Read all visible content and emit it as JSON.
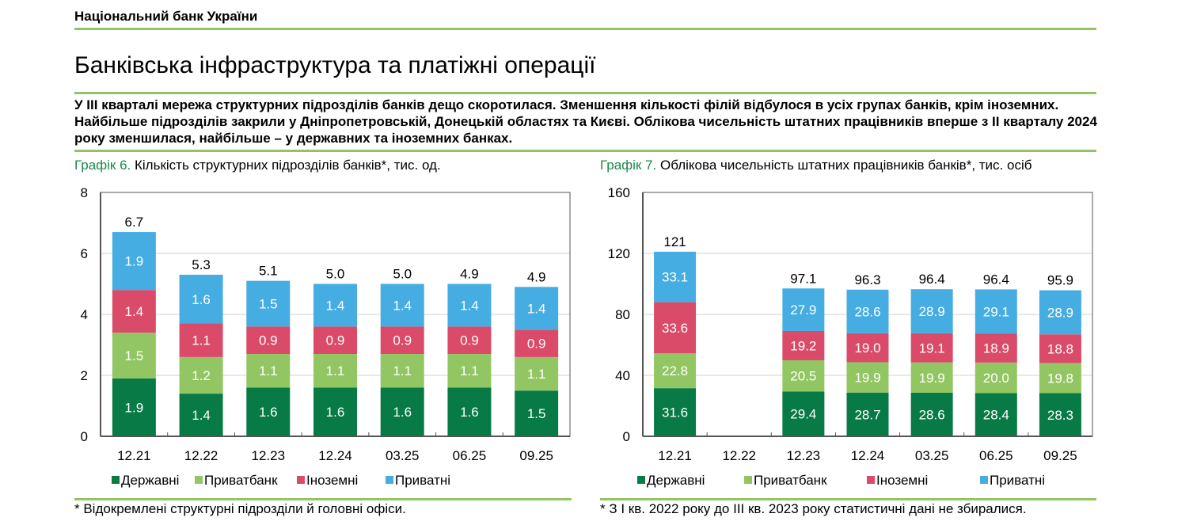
{
  "header": {
    "organization": "Національний банк України",
    "title": "Банківська інфраструктура та платіжні операції",
    "lead": "У ІІІ кварталі мережа структурних підрозділів банків дещо скоротилася. Зменшення кількості філій відбулося в усіх групах банків, крім іноземних. Найбільше підрозділів закрили у Дніпропетровській, Донецькій областях та Києві. Облікова чисельність штатних працівників вперше з ІІ кварталу 2024 року зменшилася, найбільше – у державних та іноземних банках."
  },
  "colors": {
    "accent_rule": "#92c463",
    "caption_number": "#1b8a4a",
    "state": "#087a45",
    "privatbank": "#92c663",
    "foreign": "#d94b68",
    "private": "#45ade2"
  },
  "chart_data": [
    {
      "type": "bar",
      "stacked": true,
      "caption_number": "Графік 6.",
      "title": "Кількість структурних підрозділів банків*, тис. од.",
      "categories": [
        "12.21",
        "12.22",
        "12.23",
        "12.24",
        "03.25",
        "06.25",
        "09.25"
      ],
      "series": [
        {
          "name": "Державні",
          "values": [
            1.9,
            1.4,
            1.6,
            1.6,
            1.6,
            1.6,
            1.5
          ]
        },
        {
          "name": "Приватбанк",
          "values": [
            1.5,
            1.2,
            1.1,
            1.1,
            1.1,
            1.1,
            1.1
          ]
        },
        {
          "name": "Іноземні",
          "values": [
            1.4,
            1.1,
            0.9,
            0.9,
            0.9,
            0.9,
            0.9
          ]
        },
        {
          "name": "Приватні",
          "values": [
            1.9,
            1.6,
            1.5,
            1.4,
            1.4,
            1.4,
            1.4
          ]
        }
      ],
      "totals": [
        "6.7",
        "5.3",
        "5.1",
        "5.0",
        "5.0",
        "4.9",
        "4.9"
      ],
      "ylim": [
        0,
        8
      ],
      "yticks": [
        0,
        2,
        4,
        6,
        8
      ],
      "grid": true,
      "legend": "bottom",
      "footnote": "* Відокремлені структурні підрозділи й головні офіси."
    },
    {
      "type": "bar",
      "stacked": true,
      "caption_number": "Графік 7.",
      "title": "Облікова чисельність штатних працівників банків*, тис. осіб",
      "categories": [
        "12.21",
        "12.22",
        "12.23",
        "12.24",
        "03.25",
        "06.25",
        "09.25"
      ],
      "series": [
        {
          "name": "Державні",
          "values": [
            31.6,
            null,
            29.4,
            28.7,
            28.6,
            28.4,
            28.3
          ]
        },
        {
          "name": "Приватбанк",
          "values": [
            22.8,
            null,
            20.5,
            19.9,
            19.9,
            20.0,
            19.8
          ]
        },
        {
          "name": "Іноземні",
          "values": [
            33.6,
            null,
            19.2,
            19.0,
            19.1,
            18.9,
            18.8
          ]
        },
        {
          "name": "Приватні",
          "values": [
            33.1,
            null,
            27.9,
            28.6,
            28.9,
            29.1,
            28.9
          ]
        }
      ],
      "totals": [
        "121",
        null,
        "97.1",
        "96.3",
        "96.4",
        "96.4",
        "95.9"
      ],
      "ylim": [
        0,
        160
      ],
      "yticks": [
        0,
        40,
        80,
        120,
        160
      ],
      "grid": true,
      "legend": "bottom",
      "footnote": "* З І кв. 2022 року до ІІІ кв. 2023 року статистичні дані не збиралися."
    }
  ]
}
